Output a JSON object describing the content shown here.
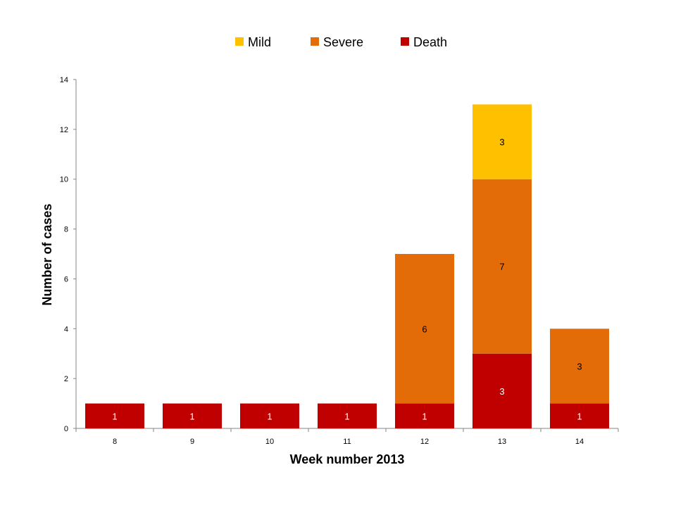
{
  "chart_data": {
    "type": "bar",
    "stacked": true,
    "categories": [
      "8",
      "9",
      "10",
      "11",
      "12",
      "13",
      "14"
    ],
    "series": [
      {
        "name": "Death",
        "color": "#C00000",
        "label_color": "#ffffff",
        "values": [
          1,
          1,
          1,
          1,
          1,
          3,
          1
        ]
      },
      {
        "name": "Severe",
        "color": "#E36C09",
        "label_color": "#000000",
        "values": [
          0,
          0,
          0,
          0,
          6,
          7,
          3
        ]
      },
      {
        "name": "Mild",
        "color": "#FFC000",
        "label_color": "#000000",
        "values": [
          0,
          0,
          0,
          0,
          0,
          3,
          0
        ]
      }
    ],
    "legend_order": [
      "Mild",
      "Severe",
      "Death"
    ],
    "legend_position": "top-center",
    "xlabel": "Week number 2013",
    "ylabel": "Number of cases",
    "ylim": [
      0,
      14
    ],
    "yticks": [
      "0",
      "2",
      "4",
      "6",
      "8",
      "10",
      "12",
      "14"
    ],
    "grid": false
  }
}
